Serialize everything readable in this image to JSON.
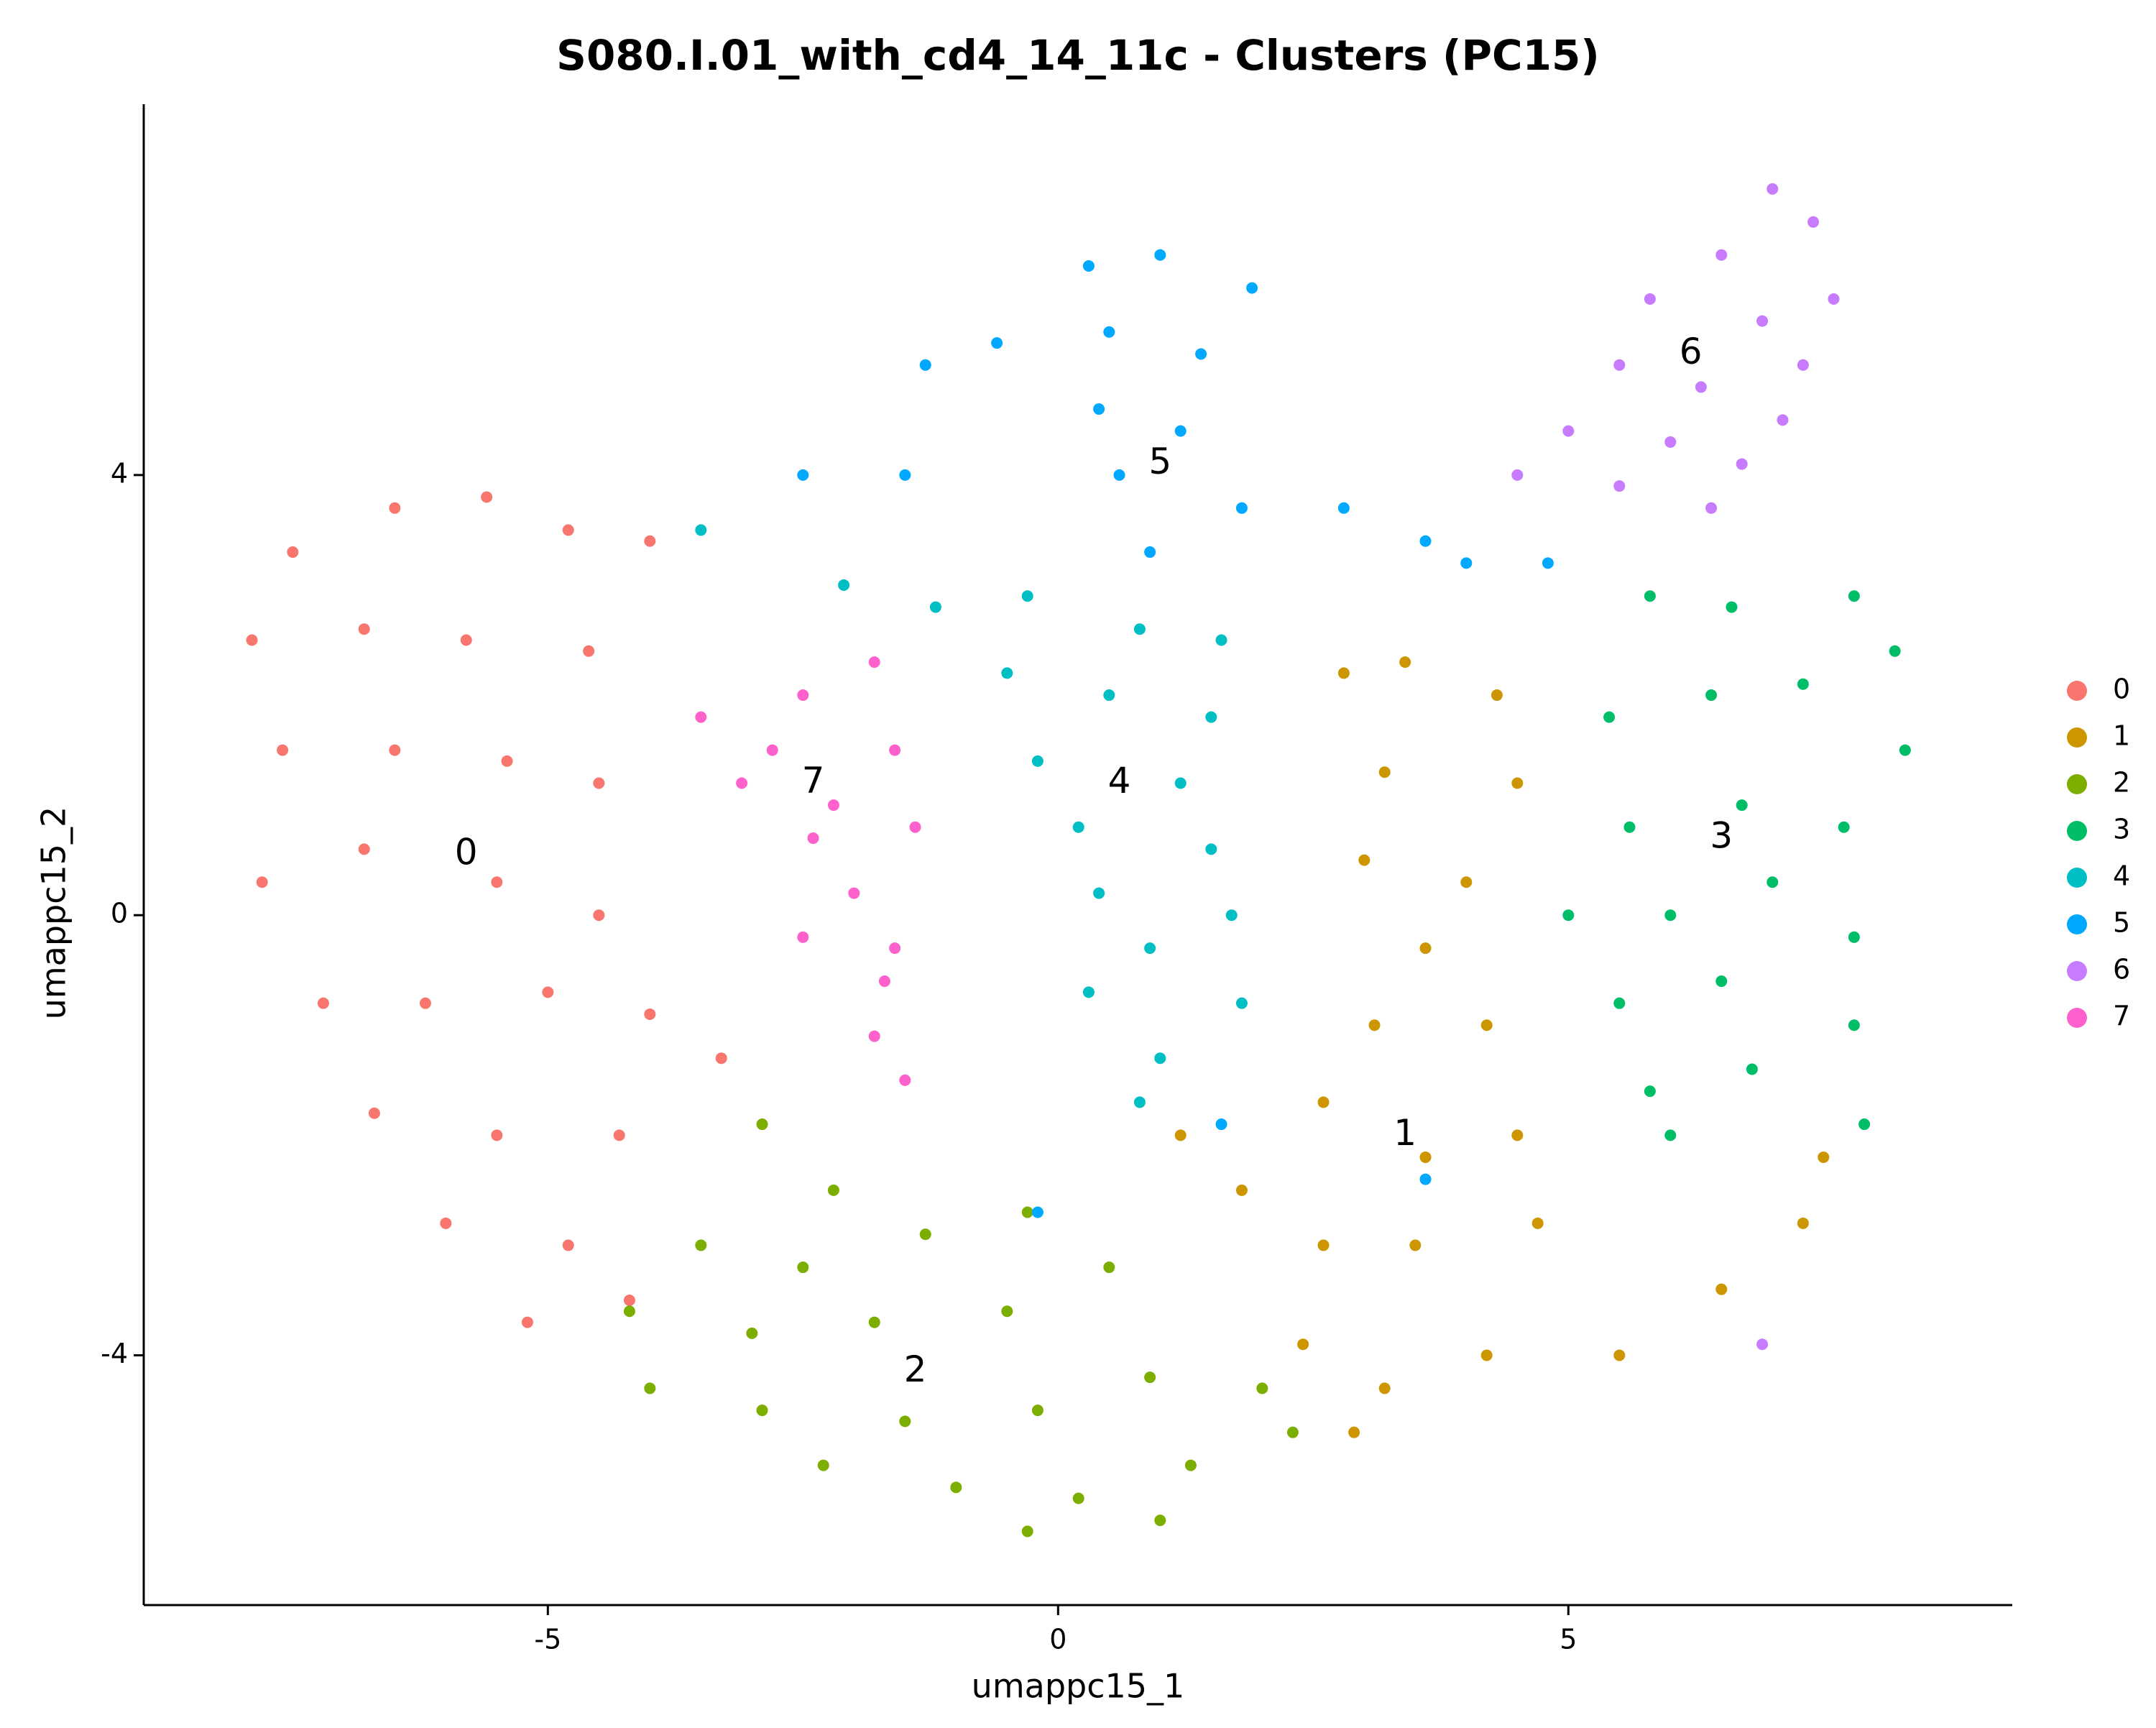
{
  "chart_data": {
    "type": "scatter",
    "title": "S080.I.01_with_cd4_14_11c - Clusters (PC15)",
    "x_label": "umappc15_1",
    "y_label": "umappc15_2",
    "xlim": [
      -8.96,
      9.35
    ],
    "ylim": [
      -6.27,
      7.37
    ],
    "xticks": [
      -5,
      0,
      5
    ],
    "yticks": [
      -4,
      0,
      4
    ],
    "grid": false,
    "legend": "right",
    "series": [
      {
        "name": "0",
        "color": "#F8766D",
        "label_position": [
          -5.8,
          0.55
        ],
        "x": [
          -7.5,
          -6.5,
          -5.6,
          -4.8,
          -4,
          -7.9,
          -6.8,
          -5.8,
          -4.6,
          -7.6,
          -6.5,
          -5.4,
          -4.5,
          -7.8,
          -6.8,
          -5.5,
          -4.5,
          -7.2,
          -6.2,
          -5,
          -4,
          -3.3,
          -6.7,
          -5.5,
          -4.3,
          -6,
          -4.8,
          -5.2,
          -4.2
        ],
        "y": [
          3.3,
          3.7,
          3.8,
          3.5,
          3.4,
          2.5,
          2.6,
          2.5,
          2.4,
          1.5,
          1.5,
          1.4,
          1.2,
          0.3,
          0.6,
          0.3,
          0,
          -0.8,
          -0.8,
          -0.7,
          -0.9,
          -1.3,
          -1.8,
          -2,
          -2,
          -2.8,
          -3,
          -3.7,
          -3.5
        ]
      },
      {
        "name": "1",
        "color": "#CD9600",
        "label_position": [
          3.4,
          -2
        ],
        "x": [
          2.8,
          3.4,
          4.3,
          3.2,
          4.5,
          3,
          4,
          3.6,
          3.1,
          4.2,
          2.6,
          3.6,
          4.5,
          1.2,
          1.8,
          2.6,
          3.5,
          4.7,
          2.4,
          3.2,
          4.2,
          5.5,
          6.5,
          7.3,
          7.5,
          2.9
        ],
        "y": [
          2.2,
          2.3,
          2,
          1.3,
          1.2,
          0.5,
          0.3,
          -0.3,
          -1,
          -1,
          -1.7,
          -2.2,
          -2,
          -2,
          -2.5,
          -3,
          -3,
          -2.8,
          -3.9,
          -4.3,
          -4,
          -4,
          -3.4,
          -2.8,
          -2.2,
          -4.7
        ]
      },
      {
        "name": "2",
        "color": "#7CAE00",
        "label_position": [
          -1.4,
          -4.15
        ],
        "x": [
          -2.9,
          -2.2,
          -3.5,
          -2.5,
          -1.3,
          -0.3,
          -4.2,
          -3,
          -1.8,
          -0.5,
          0.5,
          -4,
          -2.9,
          -1.5,
          -0.2,
          0.9,
          2,
          -2.3,
          -1,
          0.2,
          1.3,
          2.3,
          -0.3,
          1
        ],
        "y": [
          -1.9,
          -2.5,
          -3,
          -3.2,
          -2.9,
          -2.7,
          -3.6,
          -3.8,
          -3.7,
          -3.6,
          -3.2,
          -4.3,
          -4.5,
          -4.6,
          -4.5,
          -4.2,
          -4.3,
          -5,
          -5.2,
          -5.3,
          -5,
          -4.7,
          -5.6,
          -5.5
        ]
      },
      {
        "name": "3",
        "color": "#00BE67",
        "label_position": [
          6.5,
          0.7
        ],
        "x": [
          5.8,
          6.6,
          7.8,
          8.2,
          5.4,
          6.4,
          7.3,
          8.3,
          5.6,
          6.7,
          7.7,
          5,
          6,
          7,
          7.8,
          5.5,
          6.5,
          7.8,
          5.8,
          6.8,
          7.9,
          6
        ],
        "y": [
          2.9,
          2.8,
          2.9,
          2.4,
          1.8,
          2,
          2.1,
          1.5,
          0.8,
          1,
          0.8,
          0,
          0,
          0.3,
          -0.2,
          -0.8,
          -0.6,
          -1,
          -1.6,
          -1.4,
          -1.9,
          -2
        ]
      },
      {
        "name": "4",
        "color": "#00BFC4",
        "label_position": [
          0.6,
          1.2
        ],
        "x": [
          -1.2,
          -0.3,
          0.8,
          1.6,
          -0.5,
          0.5,
          1.5,
          -0.2,
          1.2,
          0.2,
          1.5,
          0.4,
          1.7,
          0.9,
          0.3,
          1.8,
          1,
          0.8,
          -2.1,
          -3.5
        ],
        "y": [
          2.8,
          2.9,
          2.6,
          2.5,
          2.2,
          2,
          1.8,
          1.4,
          1.2,
          0.8,
          0.6,
          0.2,
          0,
          -0.3,
          -0.7,
          -0.8,
          -1.3,
          -1.7,
          3,
          3.5
        ]
      },
      {
        "name": "5",
        "color": "#00A9FF",
        "label_position": [
          1,
          4.1
        ],
        "x": [
          0.3,
          1,
          1.9,
          -0.6,
          0.5,
          1.4,
          -1.3,
          0.4,
          1.2,
          -1.5,
          0.6,
          1.8,
          2.8,
          3.6,
          4,
          4.8,
          0.9,
          -2.5,
          -0.2,
          1.6,
          3.6
        ],
        "y": [
          5.9,
          6,
          5.7,
          5.2,
          5.3,
          5.1,
          5,
          4.6,
          4.4,
          4,
          4,
          3.7,
          3.7,
          3.4,
          3.2,
          3.2,
          3.3,
          4,
          -2.7,
          -1.9,
          -2.4
        ]
      },
      {
        "name": "6",
        "color": "#C77CFF",
        "label_position": [
          6.2,
          5.1
        ],
        "x": [
          7,
          7.4,
          7.6,
          6.5,
          5.8,
          6.9,
          7.3,
          5.5,
          6.3,
          7.1,
          5,
          6,
          6.7,
          4.5,
          5.5,
          6.4,
          6.9
        ],
        "y": [
          6.6,
          6.3,
          5.6,
          6,
          5.6,
          5.4,
          5,
          5,
          4.8,
          4.5,
          4.4,
          4.3,
          4.1,
          4,
          3.9,
          3.7,
          -3.9
        ]
      },
      {
        "name": "7",
        "color": "#FF61CC",
        "label_position": [
          -2.4,
          1.2
        ],
        "x": [
          -1.8,
          -2.5,
          -3.5,
          -2.8,
          -1.6,
          -2.2,
          -3.1,
          -1.4,
          -2.4,
          -2,
          -1.6,
          -1.7,
          -1.8,
          -1.5,
          -2.5
        ],
        "y": [
          2.3,
          2,
          1.8,
          1.5,
          1.5,
          1,
          1.2,
          0.8,
          0.7,
          0.2,
          -0.3,
          -0.6,
          -1.1,
          -1.5,
          -0.2
        ]
      }
    ]
  }
}
